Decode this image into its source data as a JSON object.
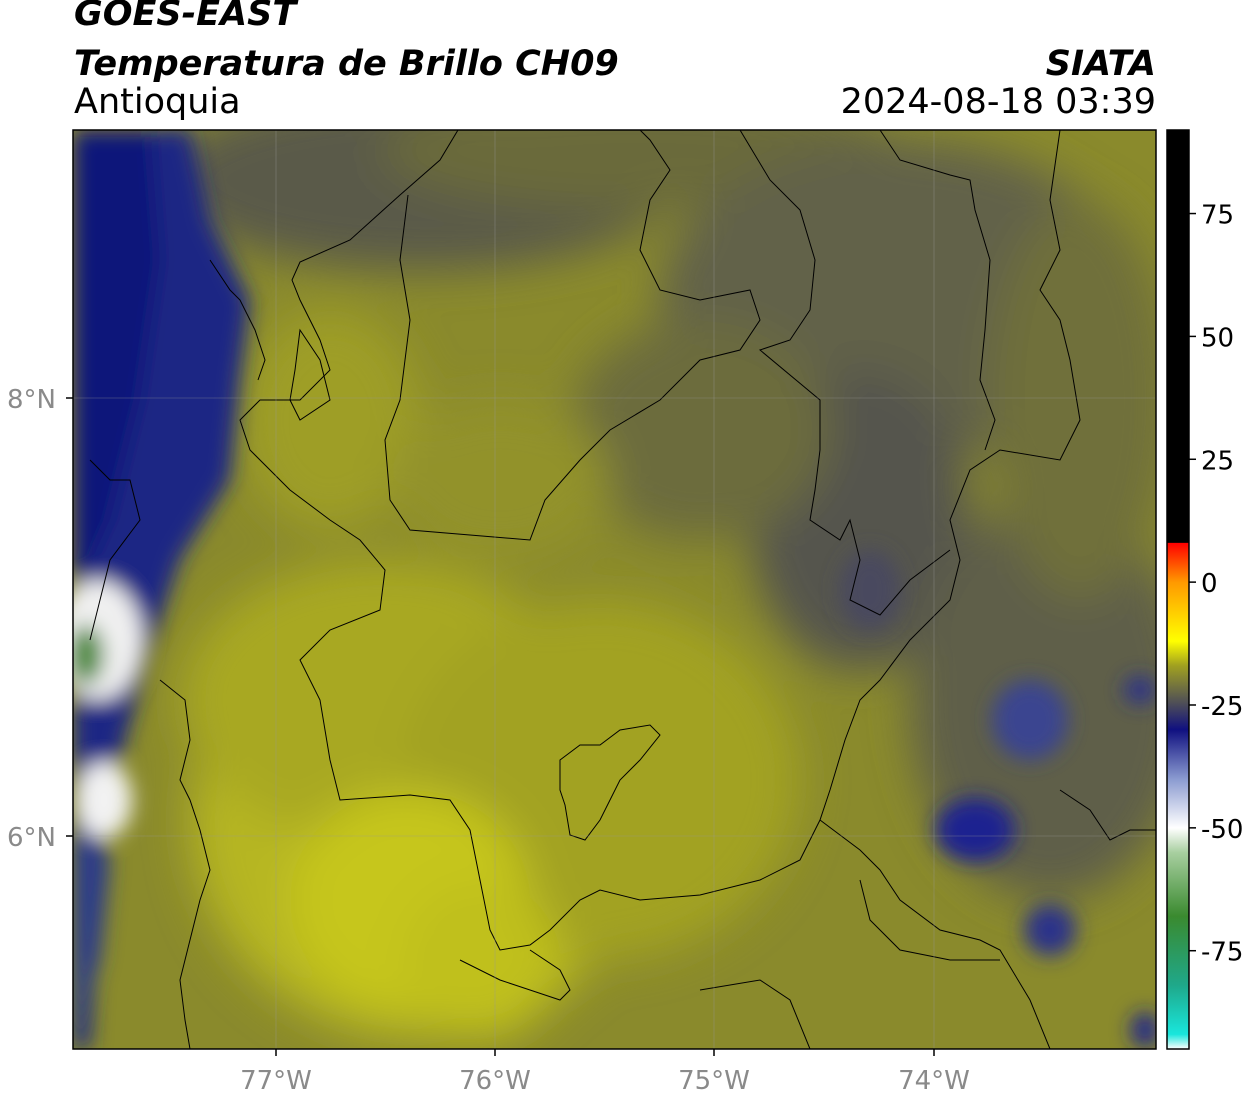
{
  "header": {
    "satellite": "GOES-EAST",
    "product": "Temperatura de Brillo CH09",
    "region": "Antioquia",
    "agency": "SIATA",
    "datetime": "2024-08-18 03:39"
  },
  "map": {
    "lat_ticks": [
      "8°N",
      "6°N"
    ],
    "lon_ticks": [
      "77°W",
      "76°W",
      "75°W",
      "74°W"
    ],
    "colors": {
      "ocean_deep": "#0d1a78",
      "land_dark": "#55554a",
      "land_mid": "#86862e",
      "land_light": "#c8c81e",
      "cloud_bright": "#e8e8e0",
      "cloud_green": "#4c8a3a"
    }
  },
  "colorbar": {
    "tick_labels": [
      "75",
      "50",
      "25",
      "0",
      "-25",
      "-50",
      "-75"
    ],
    "tick_values": [
      75,
      50,
      25,
      0,
      -25,
      -50,
      -75
    ],
    "range": [
      -95,
      92
    ],
    "stops": [
      {
        "value": -95,
        "color": "#ffffff"
      },
      {
        "value": -92,
        "color": "#19e6dc"
      },
      {
        "value": -82,
        "color": "#1fa88a"
      },
      {
        "value": -68,
        "color": "#3a8a2f"
      },
      {
        "value": -55,
        "color": "#a8cfa0"
      },
      {
        "value": -50,
        "color": "#ffffff"
      },
      {
        "value": -40,
        "color": "#8a9ad0"
      },
      {
        "value": -30,
        "color": "#101080"
      },
      {
        "value": -25,
        "color": "#4a4a5a"
      },
      {
        "value": -17,
        "color": "#a0a020"
      },
      {
        "value": -12,
        "color": "#ffff00"
      },
      {
        "value": 0,
        "color": "#ff9900"
      },
      {
        "value": 8,
        "color": "#ff0000"
      },
      {
        "value": 8.01,
        "color": "#000000"
      },
      {
        "value": 92,
        "color": "#000000"
      }
    ]
  }
}
